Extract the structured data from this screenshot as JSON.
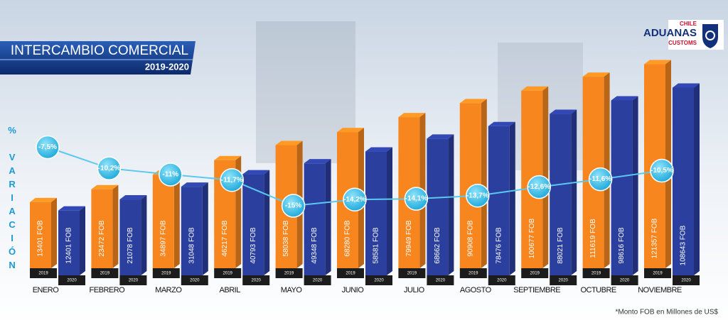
{
  "chart_data": {
    "type": "bar",
    "title": "INTERCAMBIO COMERCIAL",
    "subtitle": "2019-2020",
    "y_label": "% VARIACIÓN",
    "note": "*Monto FOB en Millones de US$",
    "categories": [
      "ENERO",
      "FEBRERO",
      "MARZO",
      "ABRIL",
      "MAYO",
      "JUNIO",
      "JULIO",
      "AGOSTO",
      "SEPTIEMBRE",
      "OCTUBRE",
      "NOVIEMBRE"
    ],
    "series": [
      {
        "name": "2019",
        "color": "#f7861f",
        "values": [
          13401,
          23472,
          34897,
          46217,
          58038,
          68280,
          79949,
          90908,
          100677,
          111619,
          121357
        ],
        "value_labels": [
          "13401 FOB",
          "23472 FOB",
          "34897 FOB",
          "46217 FOB",
          "58038 FOB",
          "68280 FOB",
          "79949 FOB",
          "90908 FOB",
          "100677 FOB",
          "111619 FOB",
          "121357 FOB"
        ]
      },
      {
        "name": "2020",
        "color": "#2b3f9e",
        "values": [
          12401,
          21078,
          31048,
          40793,
          49348,
          58581,
          68662,
          78476,
          88021,
          98616,
          108643
        ],
        "value_labels": [
          "12401 FOB",
          "21078 FOB",
          "31048 FOB",
          "40793 FOB",
          "49348 FOB",
          "58581 FOB",
          "68662 FOB",
          "78476 FOB",
          "88021 FOB",
          "98616 FOB",
          "108643 FOB"
        ]
      }
    ],
    "variation": {
      "color": "#5bc8f0",
      "values": [
        -7.5,
        -10.2,
        -11,
        -11.7,
        -15,
        -14.2,
        -14.1,
        -13.7,
        -12.6,
        -11.6,
        -10.5
      ],
      "value_labels": [
        "-7,5%",
        "-10,2%",
        "-11%",
        "-11,7%",
        "-15%",
        "-14,2%",
        "-14,1%",
        "-13,7%",
        "-12,6%",
        "-11,6%",
        "-10,5%"
      ]
    }
  },
  "logo": {
    "country": "CHILE",
    "name": "ADUANAS",
    "sub": "CUSTOMS"
  }
}
